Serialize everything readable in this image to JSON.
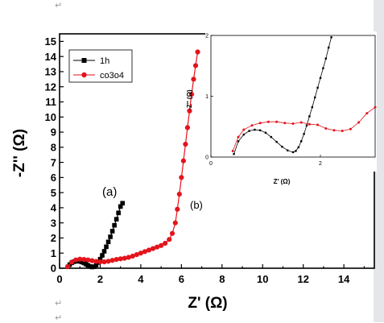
{
  "document": {
    "paragraph_mark": "↵"
  },
  "chart_data": [
    {
      "type": "scatter",
      "xlabel": "Z' (Ω)",
      "ylabel": "-Z'' (Ω)",
      "xlim": [
        0,
        15.5
      ],
      "ylim": [
        0,
        15.5
      ],
      "x_ticks": [
        "0",
        "2",
        "4",
        "6",
        "8",
        "10",
        "12",
        "14"
      ],
      "y_ticks": [
        "0",
        "1",
        "2",
        "3",
        "4",
        "5",
        "6",
        "7",
        "8",
        "9",
        "10",
        "11",
        "12",
        "13",
        "14",
        "15"
      ],
      "legend": {
        "placement": "top-left"
      },
      "annotations": [
        "(a)",
        "(b)"
      ],
      "colors": {
        "1h": "#000000",
        "co3o4": "#e3141b"
      },
      "series": [
        {
          "name": "1h",
          "marker": "square",
          "color": "#000000",
          "x": [
            0.42,
            0.5,
            0.6,
            0.7,
            0.8,
            0.9,
            1.0,
            1.1,
            1.2,
            1.3,
            1.4,
            1.5,
            1.6,
            1.7,
            1.8,
            1.9,
            2.0,
            2.1,
            2.2,
            2.3,
            2.4,
            2.5,
            2.6,
            2.7,
            2.8,
            2.9,
            3.0,
            3.1
          ],
          "y": [
            0.1,
            0.24,
            0.36,
            0.43,
            0.46,
            0.47,
            0.45,
            0.41,
            0.35,
            0.27,
            0.19,
            0.12,
            0.08,
            0.1,
            0.2,
            0.38,
            0.6,
            0.85,
            1.12,
            1.42,
            1.74,
            2.08,
            2.45,
            2.84,
            3.24,
            3.66,
            4.08,
            4.3
          ]
        },
        {
          "name": "co3o4",
          "marker": "circle",
          "color": "#e3141b",
          "x": [
            0.4,
            0.6,
            0.8,
            1.0,
            1.2,
            1.4,
            1.6,
            1.8,
            2.0,
            2.2,
            2.4,
            2.6,
            2.8,
            3.0,
            3.2,
            3.4,
            3.6,
            3.8,
            4.0,
            4.2,
            4.4,
            4.6,
            4.8,
            5.0,
            5.2,
            5.4,
            5.55,
            5.7,
            5.8,
            5.9,
            6.0,
            6.1,
            6.2,
            6.3,
            6.4,
            6.5,
            6.6,
            6.7,
            6.8
          ],
          "y": [
            0.1,
            0.4,
            0.55,
            0.6,
            0.58,
            0.55,
            0.5,
            0.45,
            0.42,
            0.42,
            0.46,
            0.52,
            0.58,
            0.62,
            0.66,
            0.72,
            0.8,
            0.9,
            1.0,
            1.1,
            1.2,
            1.3,
            1.4,
            1.5,
            1.65,
            1.9,
            2.3,
            3.0,
            3.9,
            4.9,
            6.0,
            7.1,
            8.2,
            9.3,
            10.4,
            11.5,
            12.5,
            13.4,
            14.3
          ]
        }
      ]
    },
    {
      "type": "scatter",
      "xlabel": "Z' (Ω)",
      "ylabel": "-Z'' (Ω)",
      "xlim": [
        0,
        3
      ],
      "ylim": [
        0,
        2
      ],
      "x_ticks": [
        "0",
        "2"
      ],
      "y_ticks": [
        "0",
        "1",
        "2"
      ],
      "series": [
        {
          "name": "1h",
          "marker": "square",
          "color": "#000000",
          "x": [
            0.42,
            0.5,
            0.6,
            0.7,
            0.8,
            0.9,
            1.0,
            1.1,
            1.2,
            1.3,
            1.4,
            1.5,
            1.55,
            1.6,
            1.65,
            1.7,
            1.75,
            1.8,
            1.85,
            1.9,
            1.95,
            2.0,
            2.05,
            2.1,
            2.15,
            2.2
          ],
          "y": [
            0.05,
            0.26,
            0.37,
            0.43,
            0.45,
            0.44,
            0.4,
            0.33,
            0.25,
            0.17,
            0.11,
            0.08,
            0.1,
            0.16,
            0.26,
            0.38,
            0.52,
            0.67,
            0.82,
            0.98,
            1.14,
            1.3,
            1.46,
            1.62,
            1.8,
            1.97
          ]
        },
        {
          "name": "co3o4",
          "marker": "circle",
          "color": "#e3141b",
          "x": [
            0.4,
            0.5,
            0.6,
            0.75,
            0.9,
            1.05,
            1.2,
            1.35,
            1.5,
            1.65,
            1.8,
            1.95,
            2.1,
            2.25,
            2.4,
            2.55,
            2.7,
            2.85,
            3.0
          ],
          "y": [
            0.1,
            0.33,
            0.45,
            0.52,
            0.56,
            0.58,
            0.58,
            0.56,
            0.55,
            0.57,
            0.54,
            0.53,
            0.47,
            0.44,
            0.43,
            0.46,
            0.57,
            0.72,
            0.82
          ]
        }
      ]
    }
  ]
}
